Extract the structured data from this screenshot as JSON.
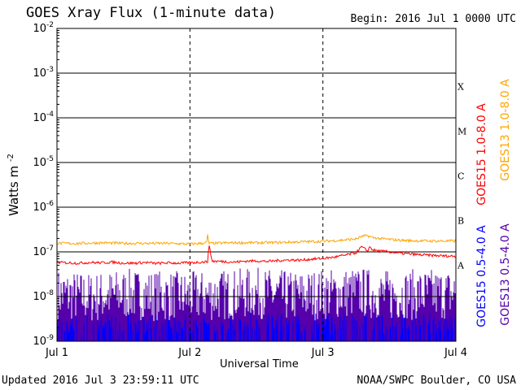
{
  "header": {
    "title": "GOES Xray Flux (1-minute data)",
    "begin": "Begin:  2016 Jul 1 0000 UTC"
  },
  "footer": {
    "updated": "Updated 2016 Jul  3 23:59:11 UTC",
    "credit": "NOAA/SWPC Boulder, CO USA"
  },
  "chart_data": {
    "type": "line",
    "title": "GOES Xray Flux (1-minute data)",
    "xlabel": "Universal Time",
    "ylabel": "Watts m",
    "ylabel_superscript": "-2",
    "yscale": "log",
    "ylim": [
      1e-09,
      0.01
    ],
    "xlim": [
      0,
      72
    ],
    "x_unit": "hours since 2016 Jul 1 0000 UTC",
    "y_ticks": [
      {
        "value": 0.01,
        "base": "10",
        "exp": "-2"
      },
      {
        "value": 0.001,
        "base": "10",
        "exp": "-3"
      },
      {
        "value": 0.0001,
        "base": "10",
        "exp": "-4"
      },
      {
        "value": 1e-05,
        "base": "10",
        "exp": "-5"
      },
      {
        "value": 1e-06,
        "base": "10",
        "exp": "-6"
      },
      {
        "value": 1e-07,
        "base": "10",
        "exp": "-7"
      },
      {
        "value": 1e-08,
        "base": "10",
        "exp": "-8"
      },
      {
        "value": 1e-09,
        "base": "10",
        "exp": "-9"
      }
    ],
    "x_ticks": [
      {
        "label": "Jul 1",
        "value": 0
      },
      {
        "label": "Jul 2",
        "value": 24
      },
      {
        "label": "Jul 3",
        "value": 48
      },
      {
        "label": "Jul 4",
        "value": 72
      }
    ],
    "flare_classes": [
      {
        "label": "X",
        "value": 0.0005
      },
      {
        "label": "M",
        "value": 5e-05
      },
      {
        "label": "C",
        "value": 5e-06
      },
      {
        "label": "B",
        "value": 5e-07
      },
      {
        "label": "A",
        "value": 5e-08
      }
    ],
    "grid": true,
    "series": [
      {
        "name": "GOES15 1.0-8.0 A",
        "color": "#ff0000",
        "x": [
          0,
          2,
          4,
          6,
          8,
          10,
          12,
          14,
          16,
          18,
          20,
          22,
          24,
          26,
          27.2,
          27.4,
          28,
          30,
          32,
          34,
          36,
          38,
          40,
          42,
          44,
          46,
          48,
          50,
          52,
          54,
          55,
          56,
          56.5,
          57,
          58,
          60,
          62,
          64,
          66,
          68,
          70,
          72
        ],
        "y": [
          5.8e-08,
          5.7e-08,
          5.6e-08,
          5.8e-08,
          5.7e-08,
          5.9e-08,
          5.6e-08,
          5.6e-08,
          5.8e-08,
          5.5e-08,
          5.7e-08,
          5.6e-08,
          5.7e-08,
          5.9e-08,
          6e-08,
          1.5e-07,
          6.2e-08,
          6.1e-08,
          5.9e-08,
          6.2e-08,
          6.3e-08,
          6.1e-08,
          6.4e-08,
          6.6e-08,
          6.5e-08,
          6.9e-08,
          7.1e-08,
          7.6e-08,
          8.4e-08,
          9.6e-08,
          1.3e-07,
          1.05e-07,
          1.3e-07,
          1.1e-07,
          1.05e-07,
          1e-07,
          9.3e-08,
          8.9e-08,
          8.5e-08,
          8.3e-08,
          8.1e-08,
          8e-08
        ]
      },
      {
        "name": "GOES13 1.0-8.0 A",
        "color": "#ffa500",
        "x": [
          0,
          4,
          8,
          12,
          16,
          20,
          24,
          26,
          27,
          27.2,
          27.4,
          28,
          32,
          36,
          40,
          44,
          48,
          50,
          52,
          54,
          55,
          56,
          57,
          58,
          60,
          62,
          64,
          68,
          72
        ],
        "y": [
          1.55e-07,
          1.55e-07,
          1.6e-07,
          1.55e-07,
          1.55e-07,
          1.55e-07,
          1.5e-07,
          1.55e-07,
          1.6e-07,
          2.4e-07,
          1.55e-07,
          1.55e-07,
          1.6e-07,
          1.6e-07,
          1.62e-07,
          1.68e-07,
          1.72e-07,
          1.78e-07,
          1.85e-07,
          1.95e-07,
          2.2e-07,
          2.3e-07,
          2.1e-07,
          2e-07,
          1.9e-07,
          1.82e-07,
          1.78e-07,
          1.75e-07,
          1.75e-07
        ]
      },
      {
        "name": "GOES15 0.5-4.0 A",
        "color": "#0000ff",
        "x": [
          0,
          6,
          12,
          18,
          24,
          30,
          36,
          42,
          48,
          54,
          60,
          66,
          72
        ],
        "y": [
          1.5e-09,
          1.4e-09,
          1.6e-09,
          1.4e-09,
          1.5e-09,
          1.5e-09,
          1.8e-09,
          1.4e-09,
          1.5e-09,
          1.6e-09,
          1.4e-09,
          1.5e-09,
          1.5e-09
        ]
      },
      {
        "name": "GOES13 0.5-4.0 A",
        "color": "#5500aa",
        "x": [
          0,
          6,
          12,
          18,
          24,
          30,
          36,
          42,
          48,
          54,
          60,
          66,
          72
        ],
        "y": [
          3e-09,
          2.5e-09,
          3e-09,
          2.8e-09,
          2.6e-09,
          2.9e-09,
          3.2e-09,
          2.7e-09,
          3e-09,
          3.3e-09,
          2.8e-09,
          3e-09,
          3e-09
        ]
      }
    ],
    "legend_placement": "right, rotated vertical"
  }
}
